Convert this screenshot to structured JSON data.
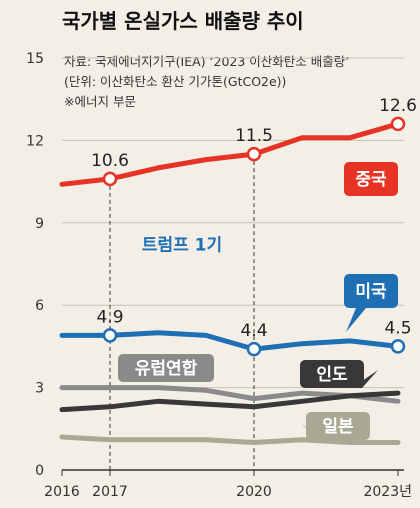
{
  "header": {
    "title": "국가별 온실가스 배출량 추이",
    "source_line": "자료: 국제에너지기구(IEA) ‘2023 이산화탄소 배출량’",
    "unit_line": "(단위: 이산화탄소 환산 기가톤(GtCO2e))",
    "note_line": "※에너지 부문"
  },
  "colors": {
    "background": "#f3efe6",
    "china": "#e63325",
    "usa": "#1f6fb5",
    "eu": "#8a8a8a",
    "india": "#383838",
    "japan": "#a8a894",
    "period": "#1f6fb5"
  },
  "chart_data": {
    "type": "line",
    "title": "국가별 온실가스 배출량 추이",
    "ylim": [
      0,
      15
    ],
    "yticks": [
      0,
      3,
      6,
      9,
      12,
      15
    ],
    "xlim": [
      2016,
      2023
    ],
    "xticks": [
      2016,
      2017,
      2020,
      2023
    ],
    "xtick_labels": [
      "2016",
      "2017",
      "2020",
      "2023년"
    ],
    "grid": true,
    "period_label": "트럼프 1기",
    "period_range": [
      2017,
      2020
    ],
    "series": [
      {
        "name": "중국",
        "color": "#e63325",
        "x": [
          2016,
          2017,
          2018,
          2019,
          2020,
          2021,
          2022,
          2023
        ],
        "y": [
          10.4,
          10.6,
          11.0,
          11.3,
          11.5,
          12.1,
          12.1,
          12.6
        ],
        "data_labels": [
          {
            "x": 2017,
            "y": 10.6,
            "text": "10.6"
          },
          {
            "x": 2020,
            "y": 11.5,
            "text": "11.5"
          },
          {
            "x": 2023,
            "y": 12.6,
            "text": "12.6"
          }
        ]
      },
      {
        "name": "미국",
        "color": "#1f6fb5",
        "x": [
          2016,
          2017,
          2018,
          2019,
          2020,
          2021,
          2022,
          2023
        ],
        "y": [
          4.9,
          4.9,
          5.0,
          4.9,
          4.4,
          4.6,
          4.7,
          4.5
        ],
        "data_labels": [
          {
            "x": 2017,
            "y": 4.9,
            "text": "4.9"
          },
          {
            "x": 2020,
            "y": 4.4,
            "text": "4.4"
          },
          {
            "x": 2023,
            "y": 4.5,
            "text": "4.5"
          }
        ]
      },
      {
        "name": "유럽연합",
        "color": "#8a8a8a",
        "x": [
          2016,
          2017,
          2018,
          2019,
          2020,
          2021,
          2022,
          2023
        ],
        "y": [
          3.0,
          3.0,
          3.0,
          2.9,
          2.6,
          2.8,
          2.7,
          2.5
        ],
        "data_labels": []
      },
      {
        "name": "인도",
        "color": "#383838",
        "x": [
          2016,
          2017,
          2018,
          2019,
          2020,
          2021,
          2022,
          2023
        ],
        "y": [
          2.2,
          2.3,
          2.5,
          2.4,
          2.3,
          2.5,
          2.7,
          2.8
        ],
        "data_labels": []
      },
      {
        "name": "일본",
        "color": "#a8a894",
        "x": [
          2016,
          2017,
          2018,
          2019,
          2020,
          2021,
          2022,
          2023
        ],
        "y": [
          1.2,
          1.1,
          1.1,
          1.1,
          1.0,
          1.1,
          1.0,
          1.0
        ],
        "data_labels": []
      }
    ]
  }
}
